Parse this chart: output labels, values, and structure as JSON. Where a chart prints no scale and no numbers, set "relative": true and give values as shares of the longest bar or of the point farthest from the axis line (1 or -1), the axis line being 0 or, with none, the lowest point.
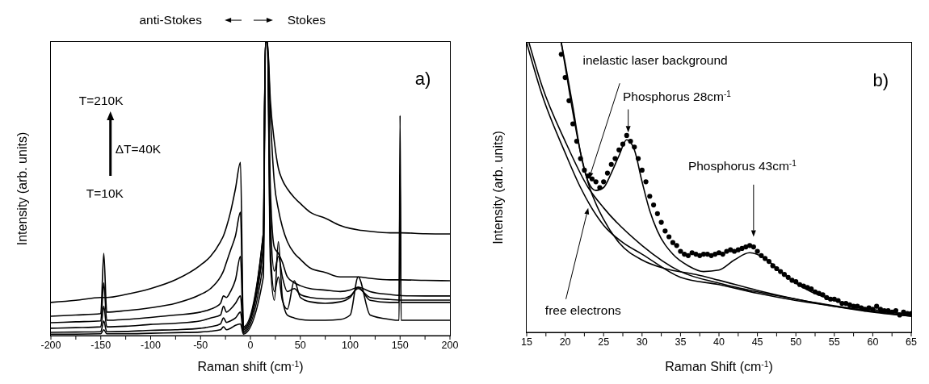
{
  "chart_data": [
    {
      "type": "line",
      "relative": true,
      "xlabel": "Raman shift (cm$^{-1}$)",
      "ylabel": "Intensity (arb. units)",
      "tick_labels": "x",
      "marker": "none",
      "line_style": "solid",
      "xlim": [
        -200,
        200
      ],
      "xticks": [
        -200,
        {
          "value": -175,
          "label": null
        },
        -150,
        {
          "value": -125,
          "label": null
        },
        -100,
        {
          "value": -75,
          "label": null
        },
        -50,
        {
          "value": -25,
          "label": null
        },
        0,
        {
          "value": 25,
          "label": null
        },
        50,
        {
          "value": 75,
          "label": null
        },
        100,
        {
          "value": 125,
          "label": null
        },
        150,
        {
          "value": 175,
          "label": null
        },
        200
      ],
      "x": [
        -200,
        -175,
        -150,
        -147,
        -144,
        -125,
        -100,
        -75,
        -50,
        -40,
        -30,
        -27,
        -24,
        -20,
        -15,
        -10,
        -7,
        13,
        15,
        17,
        20,
        24,
        28,
        32,
        37,
        44,
        50,
        60,
        75,
        90,
        100,
        108,
        120,
        140,
        149,
        150,
        151,
        175,
        200
      ],
      "annotations": [
        "anti-Stokes",
        "Stokes",
        "a)",
        "T=210K",
        "ΔT=40K",
        "T=10K"
      ],
      "series": [
        {
          "color": "#000000",
          "values": [
            0.113,
            0.12,
            0.13,
            0.13,
            0.13,
            0.14,
            0.16,
            0.19,
            0.24,
            0.27,
            0.32,
            0.34,
            0.37,
            0.42,
            0.5,
            0.59,
            0.03,
            0.35,
            1,
            1,
            0.8,
            0.66,
            0.57,
            0.53,
            0.5,
            0.47,
            0.45,
            0.42,
            0.4,
            0.375,
            0.365,
            0.36,
            0.355,
            0.35,
            0.35,
            0.35,
            0.35,
            0.347,
            0.346
          ]
        },
        {
          "color": "#000000",
          "values": [
            0.066,
            0.07,
            0.075,
            0.28,
            0.08,
            0.085,
            0.095,
            0.11,
            0.14,
            0.16,
            0.2,
            0.22,
            0.25,
            0.29,
            0.34,
            0.42,
            0.025,
            0.3,
            1,
            1,
            0.75,
            0.52,
            0.43,
            0.37,
            0.32,
            0.28,
            0.26,
            0.23,
            0.215,
            0.2,
            0.2,
            0.2,
            0.195,
            0.19,
            0.19,
            0.19,
            0.19,
            0.188,
            0.187
          ]
        },
        {
          "color": "#000000",
          "values": [
            0.044,
            0.047,
            0.05,
            0.18,
            0.052,
            0.055,
            0.062,
            0.07,
            0.08,
            0.09,
            0.11,
            0.135,
            0.13,
            0.15,
            0.19,
            0.27,
            0.02,
            0.35,
            1,
            1,
            0.5,
            0.3,
            0.28,
            0.25,
            0.2,
            0.18,
            0.17,
            0.16,
            0.155,
            0.15,
            0.155,
            0.165,
            0.15,
            0.14,
            0.137,
            0.137,
            0.136,
            0.135,
            0.135
          ]
        },
        {
          "color": "#000000",
          "values": [
            0.025,
            0.027,
            0.03,
            0.1,
            0.03,
            0.032,
            0.038,
            0.042,
            0.05,
            0.06,
            0.07,
            0.1,
            0.08,
            0.09,
            0.11,
            0.135,
            0.015,
            0.3,
            1,
            1,
            0.4,
            0.22,
            0.27,
            0.2,
            0.15,
            0.16,
            0.14,
            0.13,
            0.125,
            0.125,
            0.135,
            0.16,
            0.13,
            0.123,
            0.121,
            0.121,
            0.121,
            0.121,
            0.121
          ]
        },
        {
          "color": "#000000",
          "values": [
            0.011,
            0.012,
            0.013,
            0.05,
            0.013,
            0.014,
            0.018,
            0.02,
            0.025,
            0.03,
            0.04,
            0.06,
            0.045,
            0.05,
            0.06,
            0.08,
            0.01,
            0.25,
            1,
            1,
            0.3,
            0.15,
            0.2,
            0.12,
            0.09,
            0.187,
            0.13,
            0.115,
            0.11,
            0.115,
            0.13,
            0.165,
            0.12,
            0.113,
            0.113,
            0.55,
            0.113,
            0.113,
            0.113
          ]
        },
        {
          "color": "#000000",
          "values": [
            0.005,
            0.005,
            0.006,
            0.02,
            0.006,
            0.006,
            0.008,
            0.01,
            0.012,
            0.015,
            0.02,
            0.03,
            0.02,
            0.025,
            0.035,
            0.04,
            0.005,
            0.2,
            1,
            1,
            0.25,
            0.12,
            0.32,
            0.13,
            0.07,
            0.06,
            0.055,
            0.052,
            0.052,
            0.055,
            0.07,
            0.2,
            0.07,
            0.055,
            0.052,
            0.75,
            0.052,
            0.052,
            0.052
          ]
        }
      ]
    },
    {
      "type": "line",
      "relative": true,
      "xlabel": "Raman Shift (cm$^{-1}$)",
      "ylabel": "Intensity (arb. units)",
      "tick_labels": "x",
      "marker": "none",
      "line_style": "solid",
      "xlim": [
        15,
        65
      ],
      "xticks": [
        15,
        {
          "value": 17.5,
          "label": null
        },
        20,
        {
          "value": 22.5,
          "label": null
        },
        25,
        {
          "value": 27.5,
          "label": null
        },
        30,
        {
          "value": 32.5,
          "label": null
        },
        35,
        {
          "value": 37.5,
          "label": null
        },
        40,
        {
          "value": 42.5,
          "label": null
        },
        45,
        {
          "value": 47.5,
          "label": null
        },
        50,
        {
          "value": 52.5,
          "label": null
        },
        55,
        {
          "value": 57.5,
          "label": null
        },
        60,
        {
          "value": 62.5,
          "label": null
        },
        65
      ],
      "annotations": [
        "inelastic laser background",
        "Phosphorus 28cm$^{-1}$",
        "Phosphorus 43cm$^{-1}$",
        "free electrons",
        "b)"
      ],
      "series": [
        {
          "type": "scatter",
          "marker": "circle",
          "color": "#000000",
          "x": [
            19.5,
            20,
            20.5,
            21,
            21.5,
            22,
            22.5,
            23,
            23.5,
            24,
            24.5,
            25,
            25.5,
            26,
            26.5,
            27,
            27.5,
            28,
            28.5,
            29,
            29.5,
            30,
            30.5,
            31,
            31.5,
            32,
            32.5,
            33,
            33.5,
            34,
            34.5,
            35,
            35.5,
            36,
            36.5,
            37,
            37.5,
            38,
            38.5,
            39,
            39.5,
            40,
            40.5,
            41,
            41.5,
            42,
            42.5,
            43,
            43.5,
            44,
            44.5,
            45,
            45.5,
            46,
            46.5,
            47,
            47.5,
            48,
            48.5,
            49,
            49.5,
            50,
            50.5,
            51,
            51.5,
            52,
            52.5,
            53,
            53.5,
            54,
            54.5,
            55,
            55.5,
            56,
            56.5,
            57,
            57.5,
            58,
            58.5,
            59,
            59.5,
            60,
            60.5,
            61,
            61.5,
            62,
            62.5,
            63,
            63.5,
            64,
            64.5,
            65
          ],
          "values": [
            0.96,
            0.88,
            0.8,
            0.72,
            0.66,
            0.6,
            0.56,
            0.54,
            0.53,
            0.52,
            0.5,
            0.52,
            0.55,
            0.58,
            0.6,
            0.63,
            0.65,
            0.68,
            0.66,
            0.64,
            0.6,
            0.56,
            0.52,
            0.47,
            0.44,
            0.41,
            0.38,
            0.35,
            0.33,
            0.31,
            0.3,
            0.28,
            0.27,
            0.265,
            0.275,
            0.27,
            0.265,
            0.27,
            0.27,
            0.265,
            0.27,
            0.275,
            0.27,
            0.28,
            0.285,
            0.28,
            0.285,
            0.29,
            0.295,
            0.3,
            0.295,
            0.28,
            0.265,
            0.255,
            0.245,
            0.23,
            0.22,
            0.21,
            0.2,
            0.19,
            0.18,
            0.175,
            0.165,
            0.16,
            0.155,
            0.15,
            0.14,
            0.135,
            0.13,
            0.12,
            0.115,
            0.115,
            0.11,
            0.1,
            0.1,
            0.095,
            0.09,
            0.09,
            0.085,
            0.08,
            0.085,
            0.08,
            0.09,
            0.08,
            0.075,
            0.075,
            0.07,
            0.075,
            0.06,
            0.07,
            0.065,
            0.065
          ]
        },
        {
          "color": "#000000",
          "x": [
            19.5,
            20,
            21,
            22,
            23,
            24,
            25,
            26,
            27,
            28,
            29,
            30,
            31,
            32,
            34,
            36,
            38,
            40,
            42,
            44,
            46,
            48,
            50,
            52,
            55,
            58,
            61,
            65
          ],
          "values": [
            1,
            0.93,
            0.78,
            0.62,
            0.52,
            0.49,
            0.5,
            0.55,
            0.61,
            0.665,
            0.63,
            0.52,
            0.42,
            0.35,
            0.27,
            0.23,
            0.21,
            0.215,
            0.25,
            0.275,
            0.255,
            0.21,
            0.17,
            0.14,
            0.11,
            0.09,
            0.075,
            0.06
          ]
        },
        {
          "color": "#000000",
          "x": [
            19.5,
            20,
            21,
            22,
            23,
            25,
            27,
            30,
            33,
            37,
            40,
            45,
            50,
            55,
            60,
            65
          ],
          "values": [
            1,
            0.92,
            0.76,
            0.62,
            0.515,
            0.39,
            0.31,
            0.25,
            0.22,
            0.2,
            0.18,
            0.145,
            0.115,
            0.09,
            0.07,
            0.056
          ]
        },
        {
          "color": "#000000",
          "x": [
            15,
            17,
            20,
            22,
            25,
            27.5,
            30,
            35,
            40,
            45,
            50,
            55,
            60,
            65
          ],
          "values": [
            1,
            0.82,
            0.62,
            0.5,
            0.37,
            0.31,
            0.27,
            0.19,
            0.165,
            0.135,
            0.11,
            0.09,
            0.072,
            0.056
          ]
        },
        {
          "color": "#000000",
          "x": [
            15.3,
            17,
            20,
            23,
            25,
            30,
            35,
            40,
            45,
            50,
            55,
            60,
            65
          ],
          "values": [
            1,
            0.85,
            0.66,
            0.5,
            0.43,
            0.3,
            0.21,
            0.17,
            0.14,
            0.115,
            0.092,
            0.074,
            0.064
          ]
        }
      ]
    }
  ]
}
